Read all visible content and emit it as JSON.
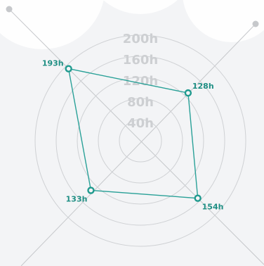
{
  "chart_data": {
    "type": "radar",
    "rings": [
      40,
      80,
      120,
      160,
      200
    ],
    "ring_labels": [
      "40h",
      "80h",
      "120h",
      "160h",
      "200h"
    ],
    "points": [
      {
        "label": "193h",
        "value": 193,
        "direction": "top-left"
      },
      {
        "label": "128h",
        "value": 128,
        "direction": "top-right"
      },
      {
        "label": "154h",
        "value": 154,
        "direction": "bottom-right"
      },
      {
        "label": "133h",
        "value": 133,
        "direction": "bottom-left"
      }
    ],
    "colors": {
      "series": "#2aa198",
      "grid": "#cfd1d4",
      "ring_label": "#cdcfd2"
    }
  }
}
